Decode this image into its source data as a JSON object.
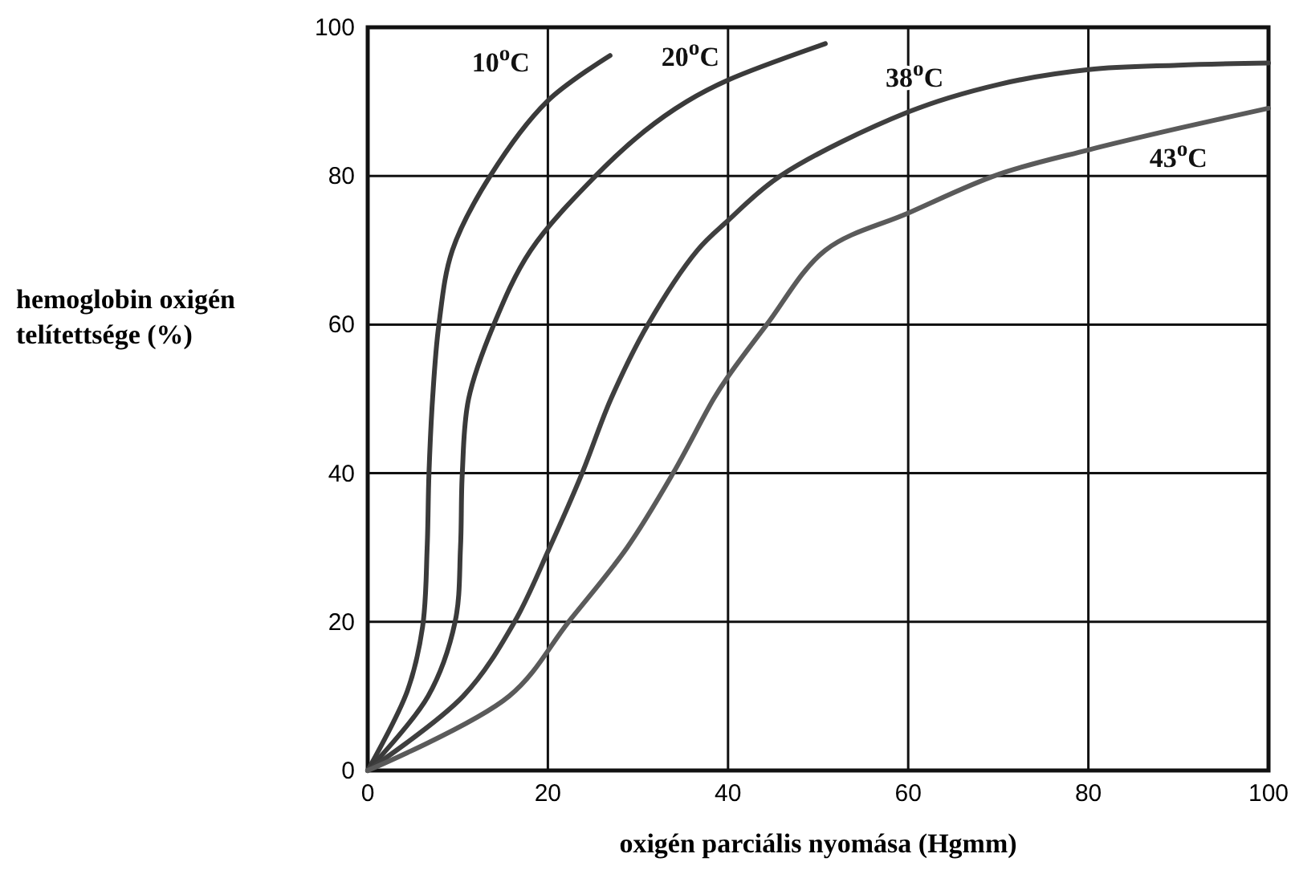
{
  "chart_data": {
    "type": "line",
    "xlabel": "oxigén parciális nyomása (Hgmm)",
    "ylabel": "hemoglobin oxigén telítettsége (%)",
    "xlim": [
      0,
      100
    ],
    "ylim": [
      0,
      100
    ],
    "xticks": [
      0,
      20,
      40,
      60,
      80,
      100
    ],
    "yticks": [
      0,
      20,
      40,
      60,
      80,
      100
    ],
    "grid": true,
    "line_style": "solid",
    "marker": "none",
    "series": [
      {
        "name": "10$^{o}$C",
        "color": "#3a3a3a",
        "x": [
          0,
          4.4,
          6.1,
          6.6,
          6.8,
          7.2,
          7.9,
          9.4,
          13.6,
          19.9,
          26.9
        ],
        "values": [
          0,
          10.7,
          19.4,
          30,
          40,
          50,
          60,
          70,
          80,
          90,
          96.2
        ]
      },
      {
        "name": "20$^{o}$C",
        "color": "#3a3a3a",
        "x": [
          0,
          6.7,
          9.7,
          10.3,
          10.5,
          11.2,
          14,
          18.1,
          25.3,
          30.7,
          35.4,
          40,
          50.8
        ],
        "values": [
          0,
          10,
          20,
          30,
          40,
          50,
          60,
          70,
          80,
          86,
          90,
          92.9,
          97.8
        ]
      },
      {
        "name": "38$^{o}$C",
        "color": "#3f3f3f",
        "x": [
          0,
          10.6,
          16.3,
          20.2,
          23.8,
          27,
          31.1,
          36.6,
          40,
          45.8,
          60,
          70,
          80,
          90,
          100
        ],
        "values": [
          0,
          10,
          20,
          30,
          40,
          50,
          60,
          70,
          74,
          80,
          88.6,
          92.3,
          94.3,
          94.9,
          95.2
        ]
      },
      {
        "name": "43$^{o}$C",
        "color": "#5a5a5a",
        "x": [
          0,
          15.7,
          22.3,
          28.8,
          33.9,
          38.4,
          40,
          44.3,
          50.8,
          60,
          70,
          80,
          90,
          100
        ],
        "values": [
          0,
          10,
          20,
          30,
          40,
          50,
          53,
          60,
          70,
          75,
          80.2,
          83.5,
          86.4,
          89.1
        ]
      }
    ]
  }
}
